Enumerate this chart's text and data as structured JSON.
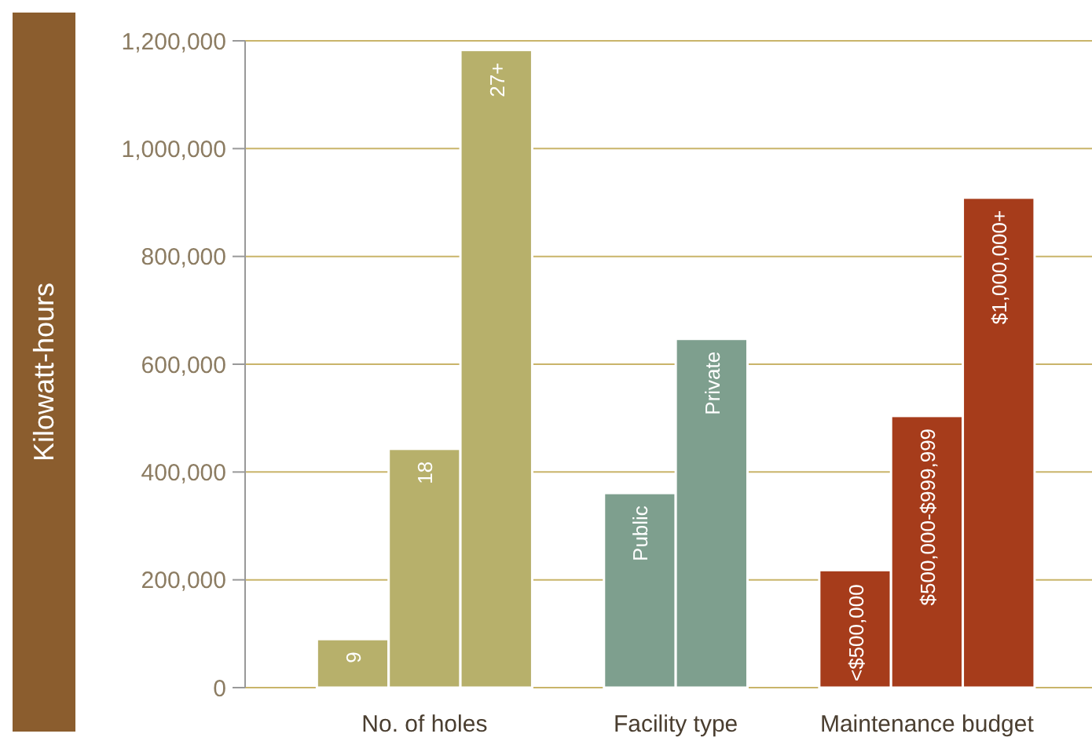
{
  "chart_data": {
    "type": "bar",
    "ylabel": "Kilowatt-hours",
    "categories": [
      "9",
      "18",
      "27+",
      "Public",
      "Private",
      "<$500,000",
      "$500,000-$999,999",
      "$1,000,000+"
    ],
    "values": [
      90000,
      443000,
      1183000,
      361000,
      647000,
      218000,
      504000,
      909000
    ],
    "colors": [
      "#b7b06b",
      "#b7b06b",
      "#b7b06b",
      "#7e9f8e",
      "#7e9f8e",
      "#a63c1b",
      "#a63c1b",
      "#a63c1b"
    ],
    "ylim": [
      0,
      1200000
    ],
    "yticks": [
      {
        "value": 0,
        "label": "0"
      },
      {
        "value": 200000,
        "label": "200,000"
      },
      {
        "value": 400000,
        "label": "400,000"
      },
      {
        "value": 600000,
        "label": "600,000"
      },
      {
        "value": 800000,
        "label": "800,000"
      },
      {
        "value": 1000000,
        "label": "1,000,000"
      },
      {
        "value": 1200000,
        "label": "1,200,000"
      }
    ],
    "grid": "y",
    "annotations": [
      "No. of holes",
      "Facility type",
      "Maintenance budget"
    ]
  }
}
